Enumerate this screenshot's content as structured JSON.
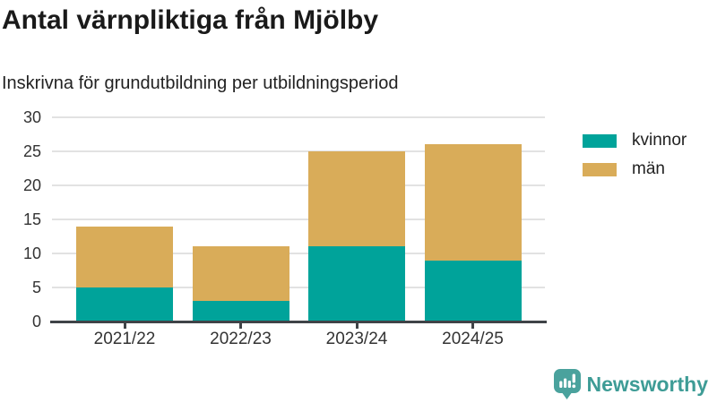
{
  "page": {
    "title": "Antal värnpliktiga från Mjölby",
    "subtitle": "Inskrivna för grundutbildning per utbildningsperiod"
  },
  "chart_data": {
    "type": "bar",
    "stacked": true,
    "title": "Antal värnpliktiga från Mjölby",
    "subtitle": "Inskrivna för grundutbildning per utbildningsperiod",
    "categories": [
      "2021/22",
      "2022/23",
      "2023/24",
      "2024/25"
    ],
    "series": [
      {
        "name": "kvinnor",
        "color": "#00a39a",
        "values": [
          5,
          3,
          11,
          9
        ]
      },
      {
        "name": "män",
        "color": "#d9ac59",
        "values": [
          9,
          8,
          14,
          17
        ]
      }
    ],
    "stack_totals": [
      14,
      11,
      25,
      26
    ],
    "xlabel": "",
    "ylabel": "",
    "ylim": [
      0,
      30
    ],
    "yticks": [
      0,
      5,
      10,
      15,
      20,
      25,
      30
    ],
    "grid": "horizontal-light",
    "gridline_color": "#e2e2e2",
    "axis_line_color": "#3f4347",
    "legend_position": "right-top",
    "legend_items": [
      "kvinnor",
      "män"
    ]
  },
  "branding": {
    "name": "Newsworthy",
    "color": "#3e9c96",
    "icon": "bar-chart-speech-bubble-icon"
  }
}
